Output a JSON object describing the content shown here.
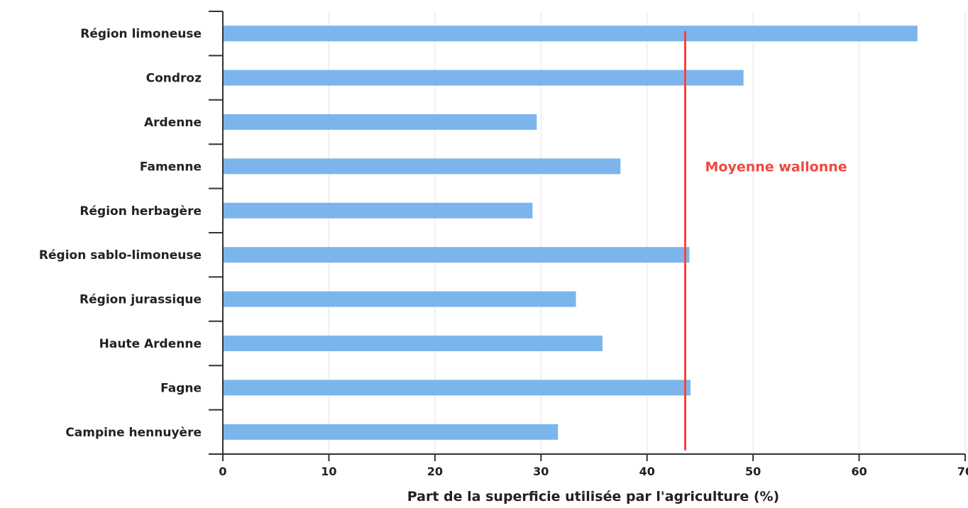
{
  "chart_data": {
    "type": "bar",
    "orientation": "horizontal",
    "categories": [
      "Région limoneuse",
      "Condroz",
      "Ardenne",
      "Famenne",
      "Région herbagère",
      "Région sablo-limoneuse",
      "Région jurassique",
      "Haute Ardenne",
      "Fagne",
      "Campine hennuyère"
    ],
    "values": [
      65.5,
      49.1,
      29.6,
      37.5,
      29.2,
      44.0,
      33.3,
      35.8,
      44.1,
      31.6
    ],
    "xlabel": "Part de la superficie utilisée par l'agriculture (%)",
    "ylabel": "",
    "xlim": [
      0,
      70
    ],
    "xticks": [
      "0",
      "10",
      "20",
      "30",
      "40",
      "50",
      "60",
      "70"
    ],
    "grid": "vertical",
    "bar_color": "#7cb5ec",
    "reference_line": {
      "value": 43.6,
      "label": "Moyenne wallonne",
      "color": "#f0483e"
    }
  }
}
